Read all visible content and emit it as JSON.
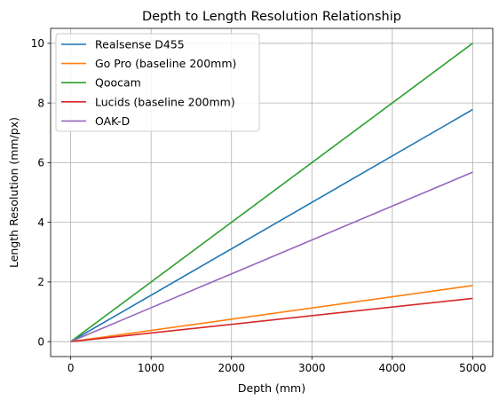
{
  "chart_data": {
    "type": "line",
    "title": "Depth to Length Resolution Relationship",
    "xlabel": "Depth (mm)",
    "ylabel": "Length Resolution (mm/px)",
    "xlim": [
      -250,
      5250
    ],
    "ylim": [
      -0.5,
      10.5
    ],
    "xticks": [
      0,
      1000,
      2000,
      3000,
      4000,
      5000
    ],
    "yticks": [
      0,
      2,
      4,
      6,
      8,
      10
    ],
    "xtick_labels": [
      "0",
      "1000",
      "2000",
      "3000",
      "4000",
      "5000"
    ],
    "ytick_labels": [
      "0",
      "2",
      "4",
      "6",
      "8",
      "10"
    ],
    "grid": true,
    "legend_position": "top-left",
    "series": [
      {
        "name": "Realsense D455",
        "color": "#1f77b4",
        "x": [
          0,
          5000
        ],
        "y": [
          0,
          7.78
        ]
      },
      {
        "name": "Go Pro (baseline 200mm)",
        "color": "#ff7f0e",
        "x": [
          0,
          5000
        ],
        "y": [
          0,
          1.88
        ]
      },
      {
        "name": "Qoocam",
        "color": "#2ca02c",
        "x": [
          0,
          5000
        ],
        "y": [
          0,
          10.0
        ]
      },
      {
        "name": "Lucids (baseline 200mm)",
        "color": "#d62728",
        "x": [
          0,
          5000
        ],
        "y": [
          0,
          1.45
        ]
      },
      {
        "name": "OAK-D",
        "color": "#9467bd",
        "x": [
          0,
          5000
        ],
        "y": [
          0,
          5.68
        ]
      }
    ]
  }
}
